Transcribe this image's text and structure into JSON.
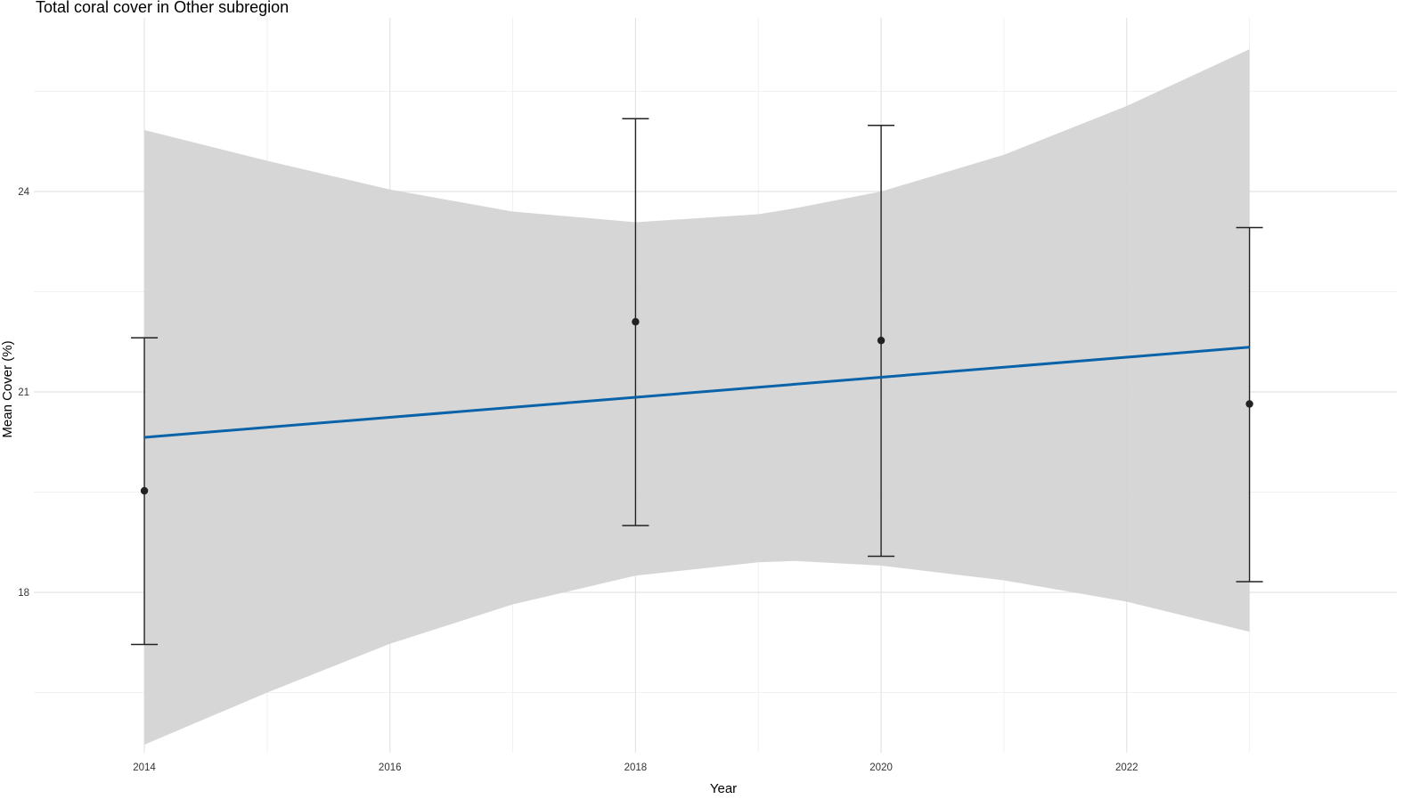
{
  "chart_data": {
    "type": "scatter",
    "title": "Total coral cover in Other subregion",
    "xlabel": "Year",
    "ylabel": "Mean Cover (%)",
    "xlim": [
      2013.1,
      2024.2
    ],
    "ylim": [
      15.6,
      26.6
    ],
    "x_ticks": [
      2014,
      2016,
      2018,
      2020,
      2022
    ],
    "y_ticks": [
      18,
      21,
      24
    ],
    "grid": true,
    "legend": "none",
    "colors": {
      "fit_line": "#0a63a8",
      "ribbon": "#d3d3d3",
      "points": "#222222",
      "error_bars": "#222222"
    },
    "points": [
      {
        "x": 2014,
        "y": 19.52,
        "ymin": 17.22,
        "ymax": 21.81
      },
      {
        "x": 2018,
        "y": 22.05,
        "ymin": 19.0,
        "ymax": 25.09
      },
      {
        "x": 2020,
        "y": 21.77,
        "ymin": 18.54,
        "ymax": 24.99
      },
      {
        "x": 2023,
        "y": 20.82,
        "ymin": 18.16,
        "ymax": 23.46
      }
    ],
    "trend": {
      "x": [
        2014,
        2023
      ],
      "y": [
        20.32,
        21.67
      ]
    },
    "confidence_band": {
      "x": [
        2014.0,
        2015.0,
        2016.0,
        2017.0,
        2018.0,
        2019.0,
        2019.3,
        2020.0,
        2021.0,
        2022.0,
        2023.0
      ],
      "upper": [
        24.92,
        24.46,
        24.03,
        23.7,
        23.54,
        23.66,
        23.75,
        24.0,
        24.55,
        25.28,
        26.13
      ],
      "lower": [
        15.72,
        16.5,
        17.23,
        17.82,
        18.25,
        18.45,
        18.47,
        18.4,
        18.18,
        17.86,
        17.41
      ]
    }
  }
}
